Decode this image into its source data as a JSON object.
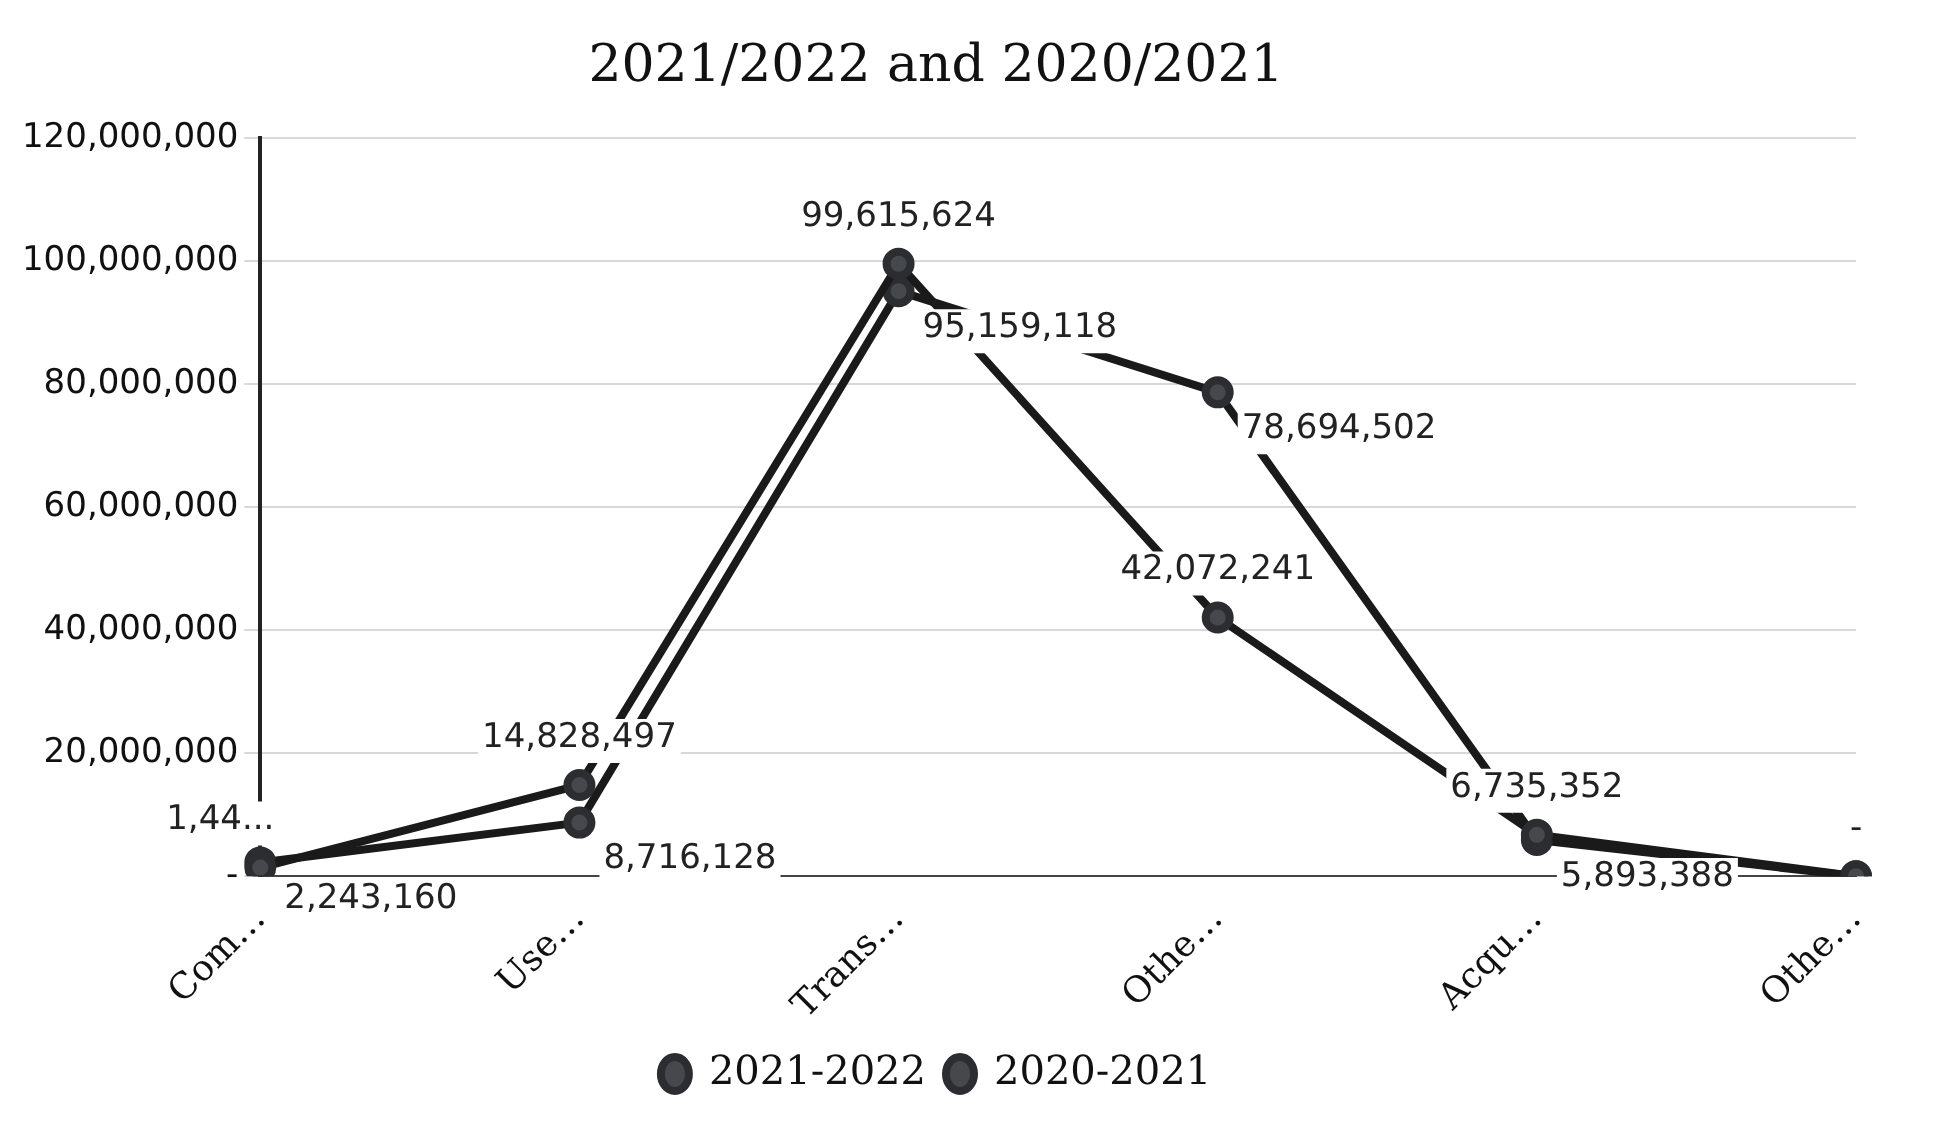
{
  "chart_data": {
    "type": "line",
    "title": "2021/2022 and 2020/2021",
    "categories": [
      "Com…",
      "Use…",
      "Trans…",
      "Othe…",
      "Acqu…",
      "Othe…"
    ],
    "series": [
      {
        "name": "2021-2022",
        "color": "#1a1a1a",
        "values": [
          1400000,
          14828497,
          99615624,
          42072241,
          6735352,
          0
        ],
        "value_labels": [
          "1,44...",
          "14,828,497",
          "99,615,624",
          "42,072,241",
          "6,735,352",
          "-"
        ]
      },
      {
        "name": "2020-2021",
        "color": "#1a1a1a",
        "values": [
          2243160,
          8716128,
          95159118,
          78694502,
          5893388,
          0
        ],
        "value_labels": [
          "2,243,160",
          "8,716,128",
          "95,159,118",
          "78,694,502",
          "5,893,388",
          null
        ]
      }
    ],
    "ylim": [
      0,
      120000000
    ],
    "yticks": [
      {
        "value": 0,
        "label": "-"
      },
      {
        "value": 20000000,
        "label": "20,000,000"
      },
      {
        "value": 40000000,
        "label": "40,000,000"
      },
      {
        "value": 60000000,
        "label": "60,000,000"
      },
      {
        "value": 80000000,
        "label": "80,000,000"
      },
      {
        "value": 100000000,
        "label": "100,000,000"
      },
      {
        "value": 120000000,
        "label": "120,000,000"
      }
    ],
    "grid": "y",
    "legend": "bottom",
    "marker": "circle",
    "line_style": "solid"
  }
}
